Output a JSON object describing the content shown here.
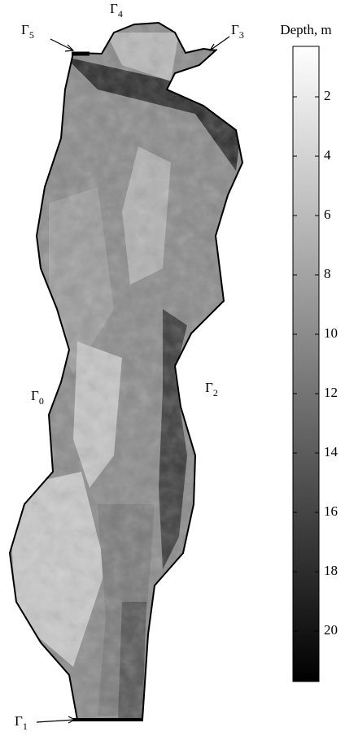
{
  "boundaries": [
    {
      "symbol": "Γ",
      "subscript": "0"
    },
    {
      "symbol": "Γ",
      "subscript": "1"
    },
    {
      "symbol": "Γ",
      "subscript": "2"
    },
    {
      "symbol": "Γ",
      "subscript": "3"
    },
    {
      "symbol": "Γ",
      "subscript": "4"
    },
    {
      "symbol": "Γ",
      "subscript": "5"
    }
  ],
  "colorbar": {
    "title": "Depth, m",
    "clim": [
      0.3,
      21.7
    ],
    "ticks": [
      2,
      4,
      6,
      8,
      10,
      12,
      14,
      16,
      18,
      20
    ],
    "colormap": [
      "#ffffff",
      "#000000"
    ]
  }
}
